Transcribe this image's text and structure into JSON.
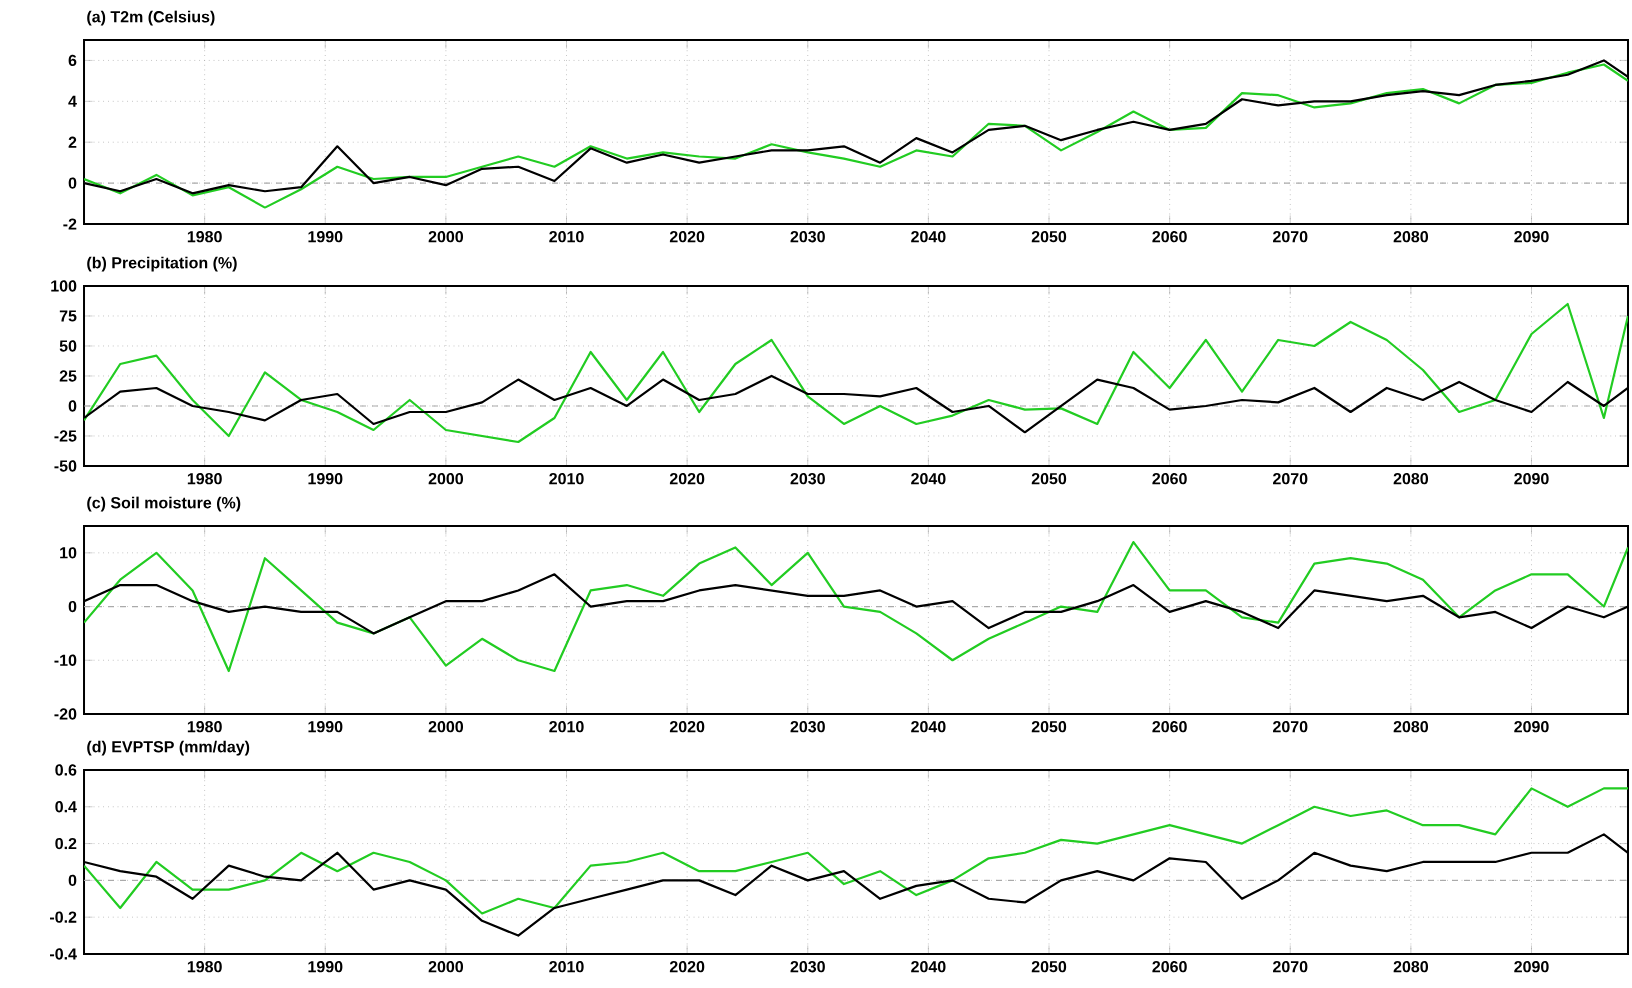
{
  "chart_data": [
    {
      "type": "line",
      "title": "(a) T2m (Celsius)",
      "xlim": [
        1970,
        2098
      ],
      "xticks": [
        1980,
        1990,
        2000,
        2010,
        2020,
        2030,
        2040,
        2050,
        2060,
        2070,
        2080,
        2090
      ],
      "ylim": [
        -2,
        7
      ],
      "yticks": [
        -2,
        0,
        2,
        4,
        6
      ],
      "grid": true,
      "x": [
        1970,
        1973,
        1976,
        1979,
        1982,
        1985,
        1988,
        1991,
        1994,
        1997,
        2000,
        2003,
        2006,
        2009,
        2012,
        2015,
        2018,
        2021,
        2024,
        2027,
        2030,
        2033,
        2036,
        2039,
        2042,
        2045,
        2048,
        2051,
        2054,
        2057,
        2060,
        2063,
        2066,
        2069,
        2072,
        2075,
        2078,
        2081,
        2084,
        2087,
        2090,
        2093,
        2096,
        2098
      ],
      "ref_lines": [
        {
          "axis": "y",
          "value": 0,
          "color": "#aaaaaa",
          "line_style": "dashed"
        }
      ],
      "series": [
        {
          "color": "#22cc22",
          "values": [
            0.2,
            -0.5,
            0.4,
            -0.6,
            -0.2,
            -1.2,
            -0.3,
            0.8,
            0.2,
            0.3,
            0.3,
            0.8,
            1.3,
            0.8,
            1.8,
            1.2,
            1.5,
            1.3,
            1.2,
            1.9,
            1.5,
            1.2,
            0.8,
            1.6,
            1.3,
            2.9,
            2.8,
            1.6,
            2.5,
            3.5,
            2.6,
            2.7,
            4.4,
            4.3,
            3.7,
            3.9,
            4.4,
            4.6,
            3.9,
            4.8,
            4.9,
            5.4,
            5.8,
            5.0
          ]
        },
        {
          "color": "#000000",
          "values": [
            0.0,
            -0.4,
            0.2,
            -0.5,
            -0.1,
            -0.4,
            -0.2,
            1.8,
            0.0,
            0.3,
            -0.1,
            0.7,
            0.8,
            0.1,
            1.7,
            1.0,
            1.4,
            1.0,
            1.3,
            1.6,
            1.6,
            1.8,
            1.0,
            2.2,
            1.5,
            2.6,
            2.8,
            2.1,
            2.6,
            3.0,
            2.6,
            2.9,
            4.1,
            3.8,
            4.0,
            4.0,
            4.3,
            4.5,
            4.3,
            4.8,
            5.0,
            5.3,
            6.0,
            5.2
          ]
        }
      ]
    },
    {
      "type": "line",
      "title": "(b) Precipitation (%)",
      "xlim": [
        1970,
        2098
      ],
      "xticks": [
        1980,
        1990,
        2000,
        2010,
        2020,
        2030,
        2040,
        2050,
        2060,
        2070,
        2080,
        2090
      ],
      "ylim": [
        -50,
        100
      ],
      "yticks": [
        -50,
        -25,
        0,
        25,
        50,
        75,
        100
      ],
      "grid": true,
      "x": [
        1970,
        1973,
        1976,
        1979,
        1982,
        1985,
        1988,
        1991,
        1994,
        1997,
        2000,
        2003,
        2006,
        2009,
        2012,
        2015,
        2018,
        2021,
        2024,
        2027,
        2030,
        2033,
        2036,
        2039,
        2042,
        2045,
        2048,
        2051,
        2054,
        2057,
        2060,
        2063,
        2066,
        2069,
        2072,
        2075,
        2078,
        2081,
        2084,
        2087,
        2090,
        2093,
        2096,
        2098
      ],
      "ref_lines": [
        {
          "axis": "y",
          "value": 0,
          "color": "#aaaaaa",
          "line_style": "dashed"
        }
      ],
      "series": [
        {
          "color": "#22cc22",
          "values": [
            -12,
            35,
            42,
            5,
            -25,
            28,
            5,
            -5,
            -20,
            5,
            -20,
            -25,
            -30,
            -10,
            45,
            5,
            45,
            -5,
            35,
            55,
            8,
            -15,
            0,
            -15,
            -8,
            5,
            -3,
            -2,
            -15,
            45,
            15,
            55,
            12,
            55,
            50,
            70,
            55,
            30,
            -5,
            5,
            60,
            85,
            -10,
            75
          ]
        },
        {
          "color": "#000000",
          "values": [
            -10,
            12,
            15,
            0,
            -5,
            -12,
            5,
            10,
            -15,
            -5,
            -5,
            3,
            22,
            5,
            15,
            0,
            22,
            5,
            10,
            25,
            10,
            10,
            8,
            15,
            -5,
            0,
            -22,
            0,
            22,
            15,
            -3,
            0,
            5,
            3,
            15,
            -5,
            15,
            5,
            20,
            5,
            -5,
            20,
            0,
            15
          ]
        }
      ]
    },
    {
      "type": "line",
      "title": "(c) Soil moisture (%)",
      "xlim": [
        1970,
        2098
      ],
      "xticks": [
        1980,
        1990,
        2000,
        2010,
        2020,
        2030,
        2040,
        2050,
        2060,
        2070,
        2080,
        2090
      ],
      "ylim": [
        -20,
        15
      ],
      "yticks": [
        -20,
        -10,
        0,
        10
      ],
      "grid": true,
      "x": [
        1970,
        1973,
        1976,
        1979,
        1982,
        1985,
        1988,
        1991,
        1994,
        1997,
        2000,
        2003,
        2006,
        2009,
        2012,
        2015,
        2018,
        2021,
        2024,
        2027,
        2030,
        2033,
        2036,
        2039,
        2042,
        2045,
        2048,
        2051,
        2054,
        2057,
        2060,
        2063,
        2066,
        2069,
        2072,
        2075,
        2078,
        2081,
        2084,
        2087,
        2090,
        2093,
        2096,
        2098
      ],
      "ref_lines": [
        {
          "axis": "y",
          "value": 0,
          "color": "#aaaaaa",
          "line_style": "dashed"
        }
      ],
      "series": [
        {
          "color": "#22cc22",
          "values": [
            -3,
            5,
            10,
            3,
            -12,
            9,
            3,
            -3,
            -5,
            -2,
            -11,
            -6,
            -10,
            -12,
            3,
            4,
            2,
            8,
            11,
            4,
            10,
            0,
            -1,
            -5,
            -10,
            -6,
            -3,
            0,
            -1,
            12,
            3,
            3,
            -2,
            -3,
            8,
            9,
            8,
            5,
            -2,
            3,
            6,
            6,
            0,
            11
          ]
        },
        {
          "color": "#000000",
          "values": [
            1,
            4,
            4,
            1,
            -1,
            0,
            -1,
            -1,
            -5,
            -2,
            1,
            1,
            3,
            6,
            0,
            1,
            1,
            3,
            4,
            3,
            2,
            2,
            3,
            0,
            1,
            -4,
            -1,
            -1,
            1,
            4,
            -1,
            1,
            -1,
            -4,
            3,
            2,
            1,
            2,
            -2,
            -1,
            -4,
            0,
            -2,
            0
          ]
        }
      ]
    },
    {
      "type": "line",
      "title": "(d) EVPTSP (mm/day)",
      "xlim": [
        1970,
        2098
      ],
      "xticks": [
        1980,
        1990,
        2000,
        2010,
        2020,
        2030,
        2040,
        2050,
        2060,
        2070,
        2080,
        2090
      ],
      "ylim": [
        -0.4,
        0.6
      ],
      "yticks": [
        -0.4,
        -0.2,
        0,
        0.2,
        0.4,
        0.6
      ],
      "grid": true,
      "x": [
        1970,
        1973,
        1976,
        1979,
        1982,
        1985,
        1988,
        1991,
        1994,
        1997,
        2000,
        2003,
        2006,
        2009,
        2012,
        2015,
        2018,
        2021,
        2024,
        2027,
        2030,
        2033,
        2036,
        2039,
        2042,
        2045,
        2048,
        2051,
        2054,
        2057,
        2060,
        2063,
        2066,
        2069,
        2072,
        2075,
        2078,
        2081,
        2084,
        2087,
        2090,
        2093,
        2096,
        2098
      ],
      "ref_lines": [
        {
          "axis": "y",
          "value": 0,
          "color": "#aaaaaa",
          "line_style": "dashed"
        }
      ],
      "series": [
        {
          "color": "#22cc22",
          "values": [
            0.08,
            -0.15,
            0.1,
            -0.05,
            -0.05,
            0.0,
            0.15,
            0.05,
            0.15,
            0.1,
            0.0,
            -0.18,
            -0.1,
            -0.15,
            0.08,
            0.1,
            0.15,
            0.05,
            0.05,
            0.1,
            0.15,
            -0.02,
            0.05,
            -0.08,
            0.0,
            0.12,
            0.15,
            0.22,
            0.2,
            0.25,
            0.3,
            0.25,
            0.2,
            0.3,
            0.4,
            0.35,
            0.38,
            0.3,
            0.3,
            0.25,
            0.5,
            0.4,
            0.5,
            0.5
          ]
        },
        {
          "color": "#000000",
          "values": [
            0.1,
            0.05,
            0.02,
            -0.1,
            0.08,
            0.02,
            0.0,
            0.15,
            -0.05,
            0.0,
            -0.05,
            -0.22,
            -0.3,
            -0.15,
            -0.1,
            -0.05,
            0.0,
            0.0,
            -0.08,
            0.08,
            0.0,
            0.05,
            -0.1,
            -0.03,
            0.0,
            -0.1,
            -0.12,
            0.0,
            0.05,
            0.0,
            0.12,
            0.1,
            -0.1,
            0.0,
            0.15,
            0.08,
            0.05,
            0.1,
            0.1,
            0.1,
            0.15,
            0.15,
            0.25,
            0.15
          ]
        }
      ]
    }
  ]
}
